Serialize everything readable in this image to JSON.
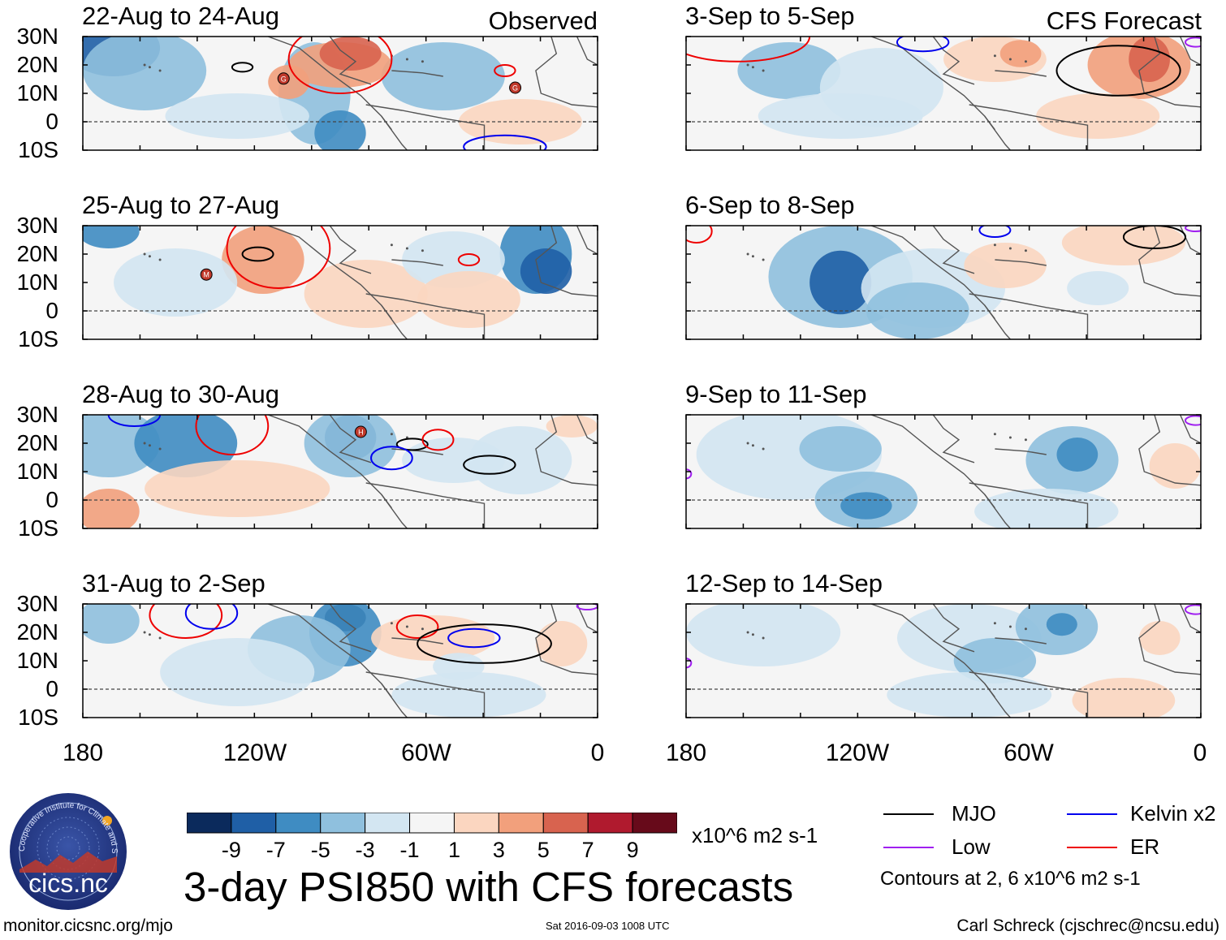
{
  "main_title": "3-day PSI850 with CFS forecasts",
  "observed_label": "Observed",
  "forecast_label": "CFS Forecast",
  "units": "x10^6 m2 s-1",
  "contour_note": "Contours at 2, 6 x10^6 m2 s-1",
  "footer": {
    "website": "monitor.cicsnc.org/mjo",
    "timestamp": "Sat 2016-09-03 1008 UTC",
    "author": "Carl Schreck (cjschrec@ncsu.edu)"
  },
  "logo": {
    "ring_text": "Cooperative Institute for Climate and Satellites",
    "name": "cics.nc"
  },
  "legend": [
    {
      "label": "MJO",
      "color": "#000000"
    },
    {
      "label": "Kelvin x2",
      "color": "#0000ee"
    },
    {
      "label": "Low",
      "color": "#a020f0"
    },
    {
      "label": "ER",
      "color": "#ee0000"
    }
  ],
  "colorbar": {
    "colors": [
      "#0b2a5c",
      "#1f5fa6",
      "#3f8cc2",
      "#8fc0de",
      "#d3e6f2",
      "#f5f5f5",
      "#fbd6c0",
      "#f2a07c",
      "#d8634f",
      "#b01a2e",
      "#670a1a"
    ],
    "labels": [
      "-9",
      "-7",
      "-5",
      "-3",
      "-1",
      "1",
      "3",
      "5",
      "7",
      "9"
    ]
  },
  "chart_data": {
    "type": "heatmap",
    "variable": "850-hPa streamfunction anomaly (PSI850)",
    "lat_ticks": [
      "30N",
      "20N",
      "10N",
      "0",
      "10S"
    ],
    "lon_ticks": [
      "180",
      "120W",
      "60W",
      "0"
    ],
    "lat_range": [
      -10,
      30
    ],
    "lon_range": [
      -180,
      0
    ],
    "contour_levels": [
      2,
      6
    ],
    "observed_panels": [
      {
        "title": "22-Aug to 24-Aug",
        "storms": [
          "G",
          "G"
        ]
      },
      {
        "title": "25-Aug to 27-Aug",
        "storms": [
          "M"
        ]
      },
      {
        "title": "28-Aug to 30-Aug",
        "storms": [
          "H"
        ]
      },
      {
        "title": "31-Aug to 2-Sep",
        "storms": []
      }
    ],
    "forecast_panels": [
      {
        "title": "3-Sep to 5-Sep"
      },
      {
        "title": "6-Sep to 8-Sep"
      },
      {
        "title": "9-Sep to 11-Sep"
      },
      {
        "title": "12-Sep to 14-Sep"
      }
    ]
  }
}
